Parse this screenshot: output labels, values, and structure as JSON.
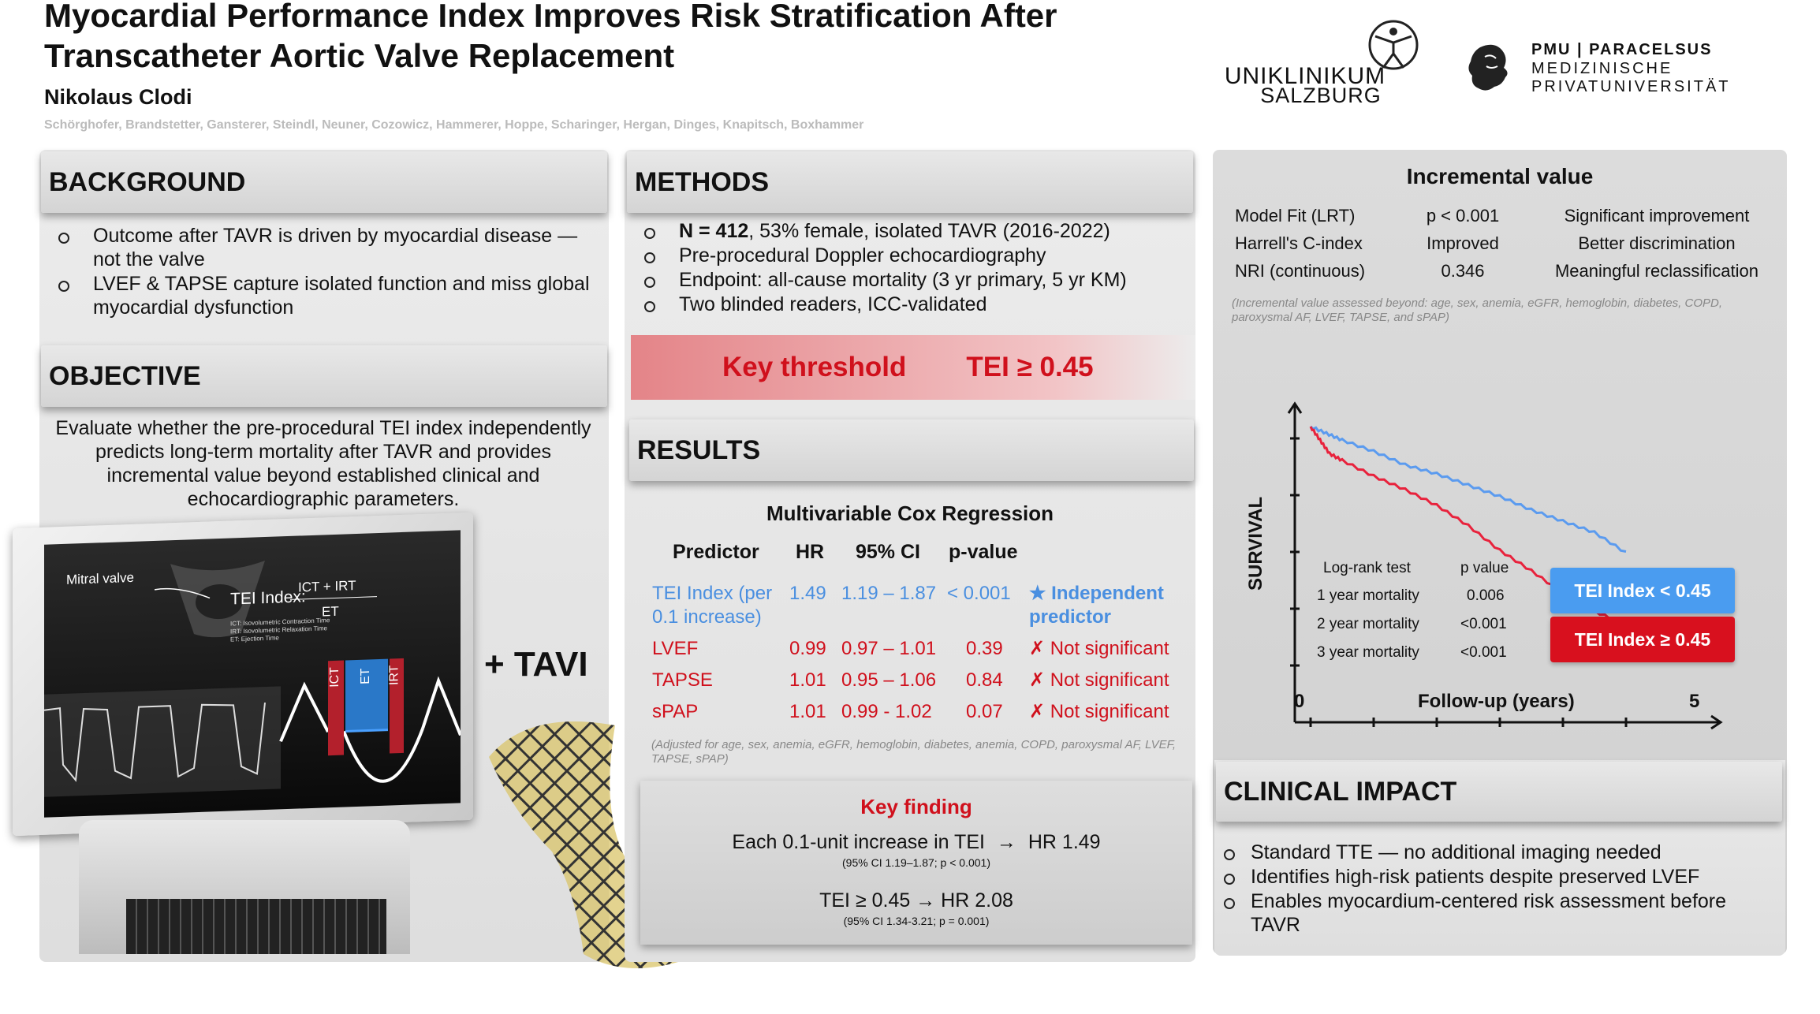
{
  "header": {
    "title": "Myocardial Performance Index Improves Risk Stratification After Transcatheter Aortic Valve Replacement",
    "author": "Nikolaus Clodi",
    "coauthors": "Schörghofer, Brandstetter, Gansterer, Steindl, Neuner, Cozowicz, Hammerer, Hoppe, Scharinger, Hergan, Dinges, Knapitsch, Boxhammer"
  },
  "logos": {
    "uniklinikum_line1": "UNIKLINIKUM",
    "uniklinikum_line2": "SALZBURG",
    "pmu_line1": "PMU | PARACELSUS",
    "pmu_line2": "MEDIZINISCHE",
    "pmu_line3": "PRIVATUNIVERSITÄT"
  },
  "background": {
    "heading": "BACKGROUND",
    "bullets": [
      "Outcome after TAVR is driven by myocardial disease — not the valve",
      "LVEF & TAPSE capture isolated function and miss global myocardial dysfunction"
    ]
  },
  "objective": {
    "heading": "OBJECTIVE",
    "text": "Evaluate whether the pre-procedural TEI index independently predicts long-term mortality after TAVR and provides incremental value beyond established clinical and echocardiographic parameters."
  },
  "illustration": {
    "mitral": "Mitral valve",
    "tei_label": "TEI Index:",
    "numerator": "ICT + IRT",
    "denominator": "ET",
    "legend1": "ICT: Isovolumetric Contraction Time",
    "legend2": "IRT: Isovolumetric Relaxation Time",
    "legend3": "ET: Ejection Time",
    "seg_ict": "ICT",
    "seg_et": "ET",
    "seg_irt": "IRT",
    "plus_tavi": "+ TAVI"
  },
  "methods": {
    "heading": "METHODS",
    "bullet1_bold": "N = 412",
    "bullet1_rest": ", 53% female, isolated TAVR (2016-2022)",
    "bullets": [
      "Pre-procedural Doppler echocardiography",
      "Endpoint: all-cause mortality (3 yr primary, 5 yr KM)",
      "Two blinded readers, ICC-validated"
    ]
  },
  "threshold": {
    "label": "Key threshold",
    "value": "TEI ≥ 0.45"
  },
  "results": {
    "heading": "RESULTS",
    "table_title": "Multivariable Cox Regression",
    "columns": [
      "Predictor",
      "HR",
      "95% CI",
      "p-value"
    ],
    "rows": [
      {
        "predictor": "TEI Index (per 0.1 increase)",
        "hr": "1.49",
        "ci": "1.19 – 1.87",
        "p": "< 0.001",
        "note": "★ Independent predictor"
      },
      {
        "predictor": "LVEF",
        "hr": "0.99",
        "ci": "0.97 – 1.01",
        "p": "0.39",
        "note": "✗ Not significant"
      },
      {
        "predictor": "TAPSE",
        "hr": "1.01",
        "ci": "0.95 – 1.06",
        "p": "0.84",
        "note": "✗ Not significant"
      },
      {
        "predictor": "sPAP",
        "hr": "1.01",
        "ci": "0.99 - 1.02",
        "p": "0.07",
        "note": "✗ Not significant"
      }
    ],
    "footnote": "(Adjusted for age, sex, anemia, eGFR, hemoglobin, diabetes, anemia, COPD, paroxysmal AF, LVEF, TAPSE, sPAP)"
  },
  "key_finding": {
    "title": "Key finding",
    "line1_pre": "Each 0.1-unit increase in TEI",
    "line1_arrow": "→",
    "line1_post": "HR 1.49",
    "line1_sub": "(95% CI 1.19–1.87; p < 0.001)",
    "line2": "TEI ≥ 0.45 → HR 2.08",
    "line2_sub": "(95% CI 1.34-3.21; p = 0.001)"
  },
  "incremental": {
    "title": "Incremental value",
    "rows": [
      {
        "metric": "Model Fit (LRT)",
        "value": "p < 0.001",
        "meaning": "Significant improvement"
      },
      {
        "metric": "Harrell's C-index",
        "value": "Improved",
        "meaning": "Better discrimination"
      },
      {
        "metric": "NRI (continuous)",
        "value": "0.346",
        "meaning": "Meaningful reclassification"
      }
    ],
    "note": "(Incremental value assessed beyond: age, sex, anemia, eGFR, hemoglobin, diabetes, COPD, paroxysmal AF, LVEF, TAPSE, and sPAP)"
  },
  "chart_data": {
    "type": "line",
    "title": "",
    "xlabel": "Follow-up (years)",
    "ylabel": "SURVIVAL",
    "x_ticks": [
      "0",
      "5"
    ],
    "xlim": [
      0,
      5
    ],
    "series": [
      {
        "name": "TEI Index < 0.45",
        "color": "#5b9bef",
        "x": [
          0,
          0.25,
          0.5,
          1,
          1.5,
          2,
          2.5,
          3,
          3.5,
          4,
          4.5,
          5
        ],
        "y": [
          1.0,
          0.985,
          0.97,
          0.945,
          0.915,
          0.895,
          0.87,
          0.845,
          0.815,
          0.79,
          0.765,
          0.72
        ]
      },
      {
        "name": "TEI Index ≥ 0.45",
        "color": "#e8223c",
        "x": [
          0,
          0.15,
          0.3,
          0.5,
          1,
          1.5,
          2,
          2.5,
          3,
          3.5,
          4,
          4.5,
          5
        ],
        "y": [
          1.0,
          0.97,
          0.94,
          0.925,
          0.89,
          0.86,
          0.825,
          0.78,
          0.725,
          0.68,
          0.63,
          0.59,
          0.56
        ]
      }
    ],
    "stats": {
      "header_test": "Log-rank test",
      "header_p": "p value",
      "rows": [
        {
          "label": "1 year mortality",
          "p": "0.006"
        },
        {
          "label": "2 year mortality",
          "p": "<0.001"
        },
        {
          "label": "3 year mortality",
          "p": "<0.001"
        }
      ]
    },
    "legend_placement": "right"
  },
  "clinical": {
    "heading": "CLINICAL IMPACT",
    "bullets": [
      "Standard TTE — no additional imaging needed",
      "Identifies high-risk patients despite preserved LVEF",
      "Enables myocardium-centered risk assessment before TAVR"
    ]
  }
}
